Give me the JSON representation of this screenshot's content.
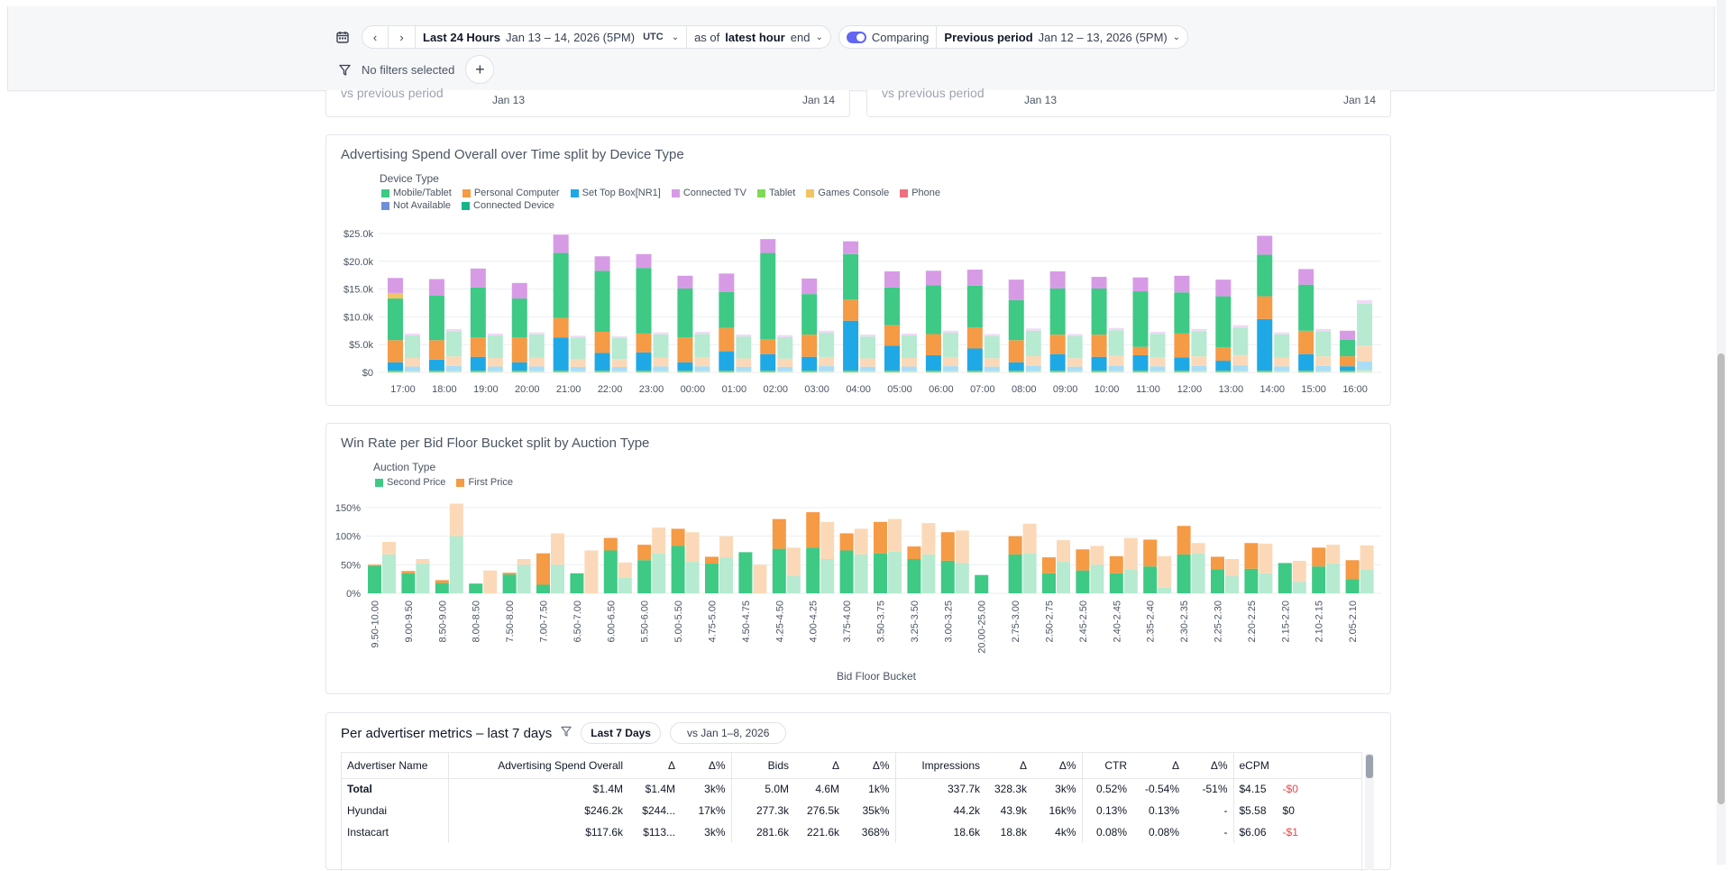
{
  "toolbar": {
    "range_label": "Last 24 Hours",
    "range_dates": "Jan 13 – 14, 2026 (5PM)",
    "timezone": "UTC",
    "as_of_prefix": "as of",
    "as_of_bold": "latest hour",
    "as_of_suffix": "end",
    "comparing_label": "Comparing",
    "compare_label": "Previous period",
    "compare_dates": "Jan 12 – 13, 2026 (5PM)",
    "filters_label": "No filters selected"
  },
  "partial_cards": [
    {
      "subtitle": "vs previous period",
      "start": "Jan 13",
      "end": "Jan 14"
    },
    {
      "subtitle": "vs previous period",
      "start": "Jan 13",
      "end": "Jan 14"
    }
  ],
  "spend_chart": {
    "title": "Advertising Spend Overall over Time split by Device Type",
    "legend_title": "Device Type",
    "legend": [
      {
        "name": "Mobile/Tablet",
        "color": "#3ec985"
      },
      {
        "name": "Personal Computer",
        "color": "#f59a45"
      },
      {
        "name": "Set Top Box[NR1]",
        "color": "#1fa8e6"
      },
      {
        "name": "Connected TV",
        "color": "#d79be6"
      },
      {
        "name": "Tablet",
        "color": "#7ed957"
      },
      {
        "name": "Games Console",
        "color": "#f2c464"
      },
      {
        "name": "Phone",
        "color": "#ef6f7e"
      },
      {
        "name": "Not Available",
        "color": "#6f8fd9"
      },
      {
        "name": "Connected Device",
        "color": "#19b38a"
      }
    ]
  },
  "win_chart": {
    "title": "Win Rate per Bid Floor Bucket split by Auction Type",
    "legend_title": "Auction Type",
    "legend": [
      {
        "name": "Second Price",
        "color": "#3ec985"
      },
      {
        "name": "First Price",
        "color": "#f59a45"
      }
    ]
  },
  "chart_data": [
    {
      "type": "bar",
      "stacked": true,
      "title": "Advertising Spend Overall over Time split by Device Type",
      "legend_title": "Device Type",
      "categories": [
        "17:00",
        "18:00",
        "19:00",
        "20:00",
        "21:00",
        "22:00",
        "23:00",
        "00:00",
        "01:00",
        "02:00",
        "03:00",
        "04:00",
        "05:00",
        "06:00",
        "07:00",
        "08:00",
        "09:00",
        "10:00",
        "11:00",
        "12:00",
        "13:00",
        "14:00",
        "15:00",
        "16:00"
      ],
      "y_ticks": [
        "$0",
        "$5.0k",
        "$10.0k",
        "$15.0k",
        "$20.0k",
        "$25.0k"
      ],
      "ylim": [
        0,
        25000
      ],
      "series": [
        {
          "name": "Tablet",
          "values": [
            300,
            300,
            300,
            300,
            300,
            300,
            300,
            300,
            300,
            300,
            300,
            300,
            300,
            300,
            300,
            300,
            300,
            300,
            300,
            300,
            300,
            300,
            300,
            300
          ]
        },
        {
          "name": "Set Top Box[NR1]",
          "values": [
            1500,
            2000,
            2500,
            1500,
            6000,
            3200,
            3300,
            1500,
            3500,
            3000,
            2500,
            9000,
            4500,
            2800,
            4000,
            1500,
            3000,
            2500,
            2800,
            2400,
            1800,
            9300,
            3000,
            800
          ]
        },
        {
          "name": "Personal Computer",
          "values": [
            4000,
            3500,
            3500,
            4500,
            3500,
            3800,
            3400,
            4500,
            4200,
            2700,
            4000,
            3800,
            3700,
            3800,
            3800,
            4000,
            3500,
            4000,
            1500,
            4300,
            2400,
            4100,
            4200,
            1800
          ]
        },
        {
          "name": "Mobile/Tablet",
          "values": [
            7500,
            8000,
            9000,
            7000,
            11700,
            11000,
            11800,
            8800,
            6500,
            15500,
            7300,
            8200,
            6800,
            8800,
            7500,
            7200,
            8300,
            8300,
            10000,
            7400,
            9200,
            7500,
            8300,
            3000
          ]
        },
        {
          "name": "Games Console",
          "values": [
            1000,
            0,
            0,
            0,
            0,
            0,
            0,
            0,
            0,
            0,
            0,
            0,
            0,
            0,
            0,
            0,
            0,
            0,
            0,
            0,
            0,
            0,
            0,
            0
          ]
        },
        {
          "name": "Connected TV",
          "values": [
            2700,
            3000,
            3400,
            2800,
            3300,
            2600,
            2500,
            2300,
            3300,
            2500,
            2800,
            2300,
            2900,
            2600,
            2900,
            3700,
            3100,
            2100,
            2500,
            3000,
            3000,
            3400,
            2800,
            1600
          ]
        }
      ],
      "previous_period_totals": [
        7000,
        7800,
        7000,
        7200,
        6600,
        6500,
        7200,
        7300,
        6800,
        6700,
        7500,
        6800,
        7000,
        7500,
        6900,
        7900,
        6900,
        8000,
        7300,
        7800,
        8500,
        7200,
        7800,
        13000
      ]
    },
    {
      "type": "bar",
      "stacked": true,
      "title": "Win Rate per Bid Floor Bucket split by Auction Type",
      "legend_title": "Auction Type",
      "xlabel": "Bid Floor Bucket",
      "categories": [
        "9.50-10.00",
        "9.00-9.50",
        "8.50-9.00",
        "8.00-8.50",
        "7.50-8.00",
        "7.00-7.50",
        "6.50-7.00",
        "6.00-6.50",
        "5.50-6.00",
        "5.00-5.50",
        "4.75-5.00",
        "4.50-4.75",
        "4.25-4.50",
        "4.00-4.25",
        "3.75-4.00",
        "3.50-3.75",
        "3.25-3.50",
        "3.00-3.25",
        "20.00-25.00",
        "2.75-3.00",
        "2.50-2.75",
        "2.45-2.50",
        "2.40-2.45",
        "2.35-2.40",
        "2.30-2.35",
        "2.25-2.30",
        "2.20-2.25",
        "2.15-2.20",
        "2.10-2.15",
        "2.05-2.10"
      ],
      "y_ticks": [
        "0%",
        "50%",
        "100%",
        "150%"
      ],
      "ylim": [
        0,
        165
      ],
      "series": [
        {
          "name": "Second Price",
          "values": [
            48,
            35,
            18,
            17,
            33,
            15,
            35,
            75,
            58,
            83,
            52,
            72,
            78,
            80,
            75,
            70,
            60,
            57,
            32,
            68,
            35,
            40,
            35,
            47,
            68,
            42,
            43,
            53,
            47,
            25
          ]
        },
        {
          "name": "First Price",
          "values": [
            2,
            4,
            5,
            0,
            3,
            55,
            0,
            22,
            27,
            30,
            12,
            0,
            52,
            62,
            30,
            55,
            22,
            50,
            0,
            32,
            28,
            37,
            30,
            47,
            50,
            22,
            45,
            0,
            33,
            33
          ]
        }
      ],
      "previous_period": {
        "Second Price": [
          68,
          52,
          100,
          0,
          50,
          50,
          0,
          27,
          70,
          55,
          63,
          0,
          30,
          60,
          68,
          73,
          68,
          53,
          0,
          70,
          55,
          50,
          42,
          10,
          70,
          30,
          35,
          20,
          52,
          42
        ],
        "First Price": [
          22,
          8,
          57,
          40,
          10,
          55,
          75,
          27,
          45,
          52,
          37,
          50,
          50,
          65,
          45,
          57,
          55,
          57,
          0,
          52,
          38,
          33,
          55,
          55,
          18,
          30,
          52,
          37,
          33,
          42
        ]
      }
    }
  ],
  "metrics_table": {
    "title": "Per advertiser metrics – last 7 days",
    "range_button": "Last 7 Days",
    "compare_button": "vs Jan 1–8, 2026",
    "headers": [
      "Advertiser Name",
      "Advertising Spend Overall",
      "Δ",
      "Δ%",
      "Bids",
      "Δ",
      "Δ%",
      "Impressions",
      "Δ",
      "Δ%",
      "CTR",
      "Δ",
      "Δ%",
      "eCPM"
    ],
    "rows": [
      {
        "name": "Total",
        "bold": true,
        "spend": "$1.4M",
        "spend_prev": "$1.4M",
        "spend_pct": "3k%",
        "bids": "5.0M",
        "bids_prev": "4.6M",
        "bids_pct": "1k%",
        "imps": "337.7k",
        "imps_prev": "328.3k",
        "imps_pct": "3k%",
        "ctr": "0.52%",
        "ctr_prev": "-0.54%",
        "ctr_pct": "-51%",
        "ecpm": "$4.15",
        "ecpm_prev": "-$0"
      },
      {
        "name": "Hyundai",
        "bold": false,
        "spend": "$246.2k",
        "spend_prev": "$244...",
        "spend_pct": "17k%",
        "bids": "277.3k",
        "bids_prev": "276.5k",
        "bids_pct": "35k%",
        "imps": "44.2k",
        "imps_prev": "43.9k",
        "imps_pct": "16k%",
        "ctr": "0.13%",
        "ctr_prev": "0.13%",
        "ctr_pct": "-",
        "ecpm": "$5.58",
        "ecpm_prev": "$0"
      },
      {
        "name": "Instacart",
        "bold": false,
        "spend": "$117.6k",
        "spend_prev": "$113...",
        "spend_pct": "3k%",
        "bids": "281.6k",
        "bids_prev": "221.6k",
        "bids_pct": "368%",
        "imps": "18.6k",
        "imps_prev": "18.8k",
        "imps_pct": "4k%",
        "ctr": "0.08%",
        "ctr_prev": "0.08%",
        "ctr_pct": "-",
        "ecpm": "$6.06",
        "ecpm_prev": "-$1"
      }
    ]
  }
}
